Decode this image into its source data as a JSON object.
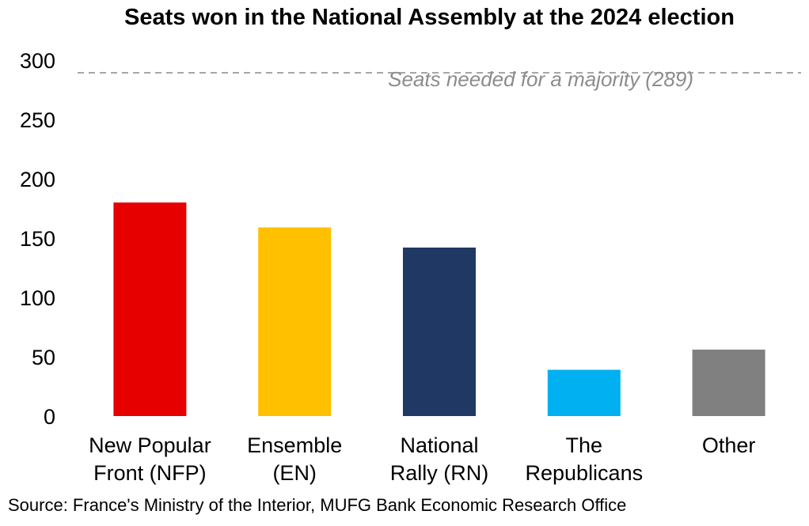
{
  "chart_data": {
    "type": "bar",
    "title": "Seats won in the National Assembly at the 2024 election",
    "categories": [
      [
        "New Popular",
        "Front (NFP)"
      ],
      [
        "Ensemble",
        "(EN)"
      ],
      [
        "National",
        "Rally (RN)"
      ],
      [
        "The",
        "Republicans"
      ],
      [
        "Other"
      ]
    ],
    "values": [
      180,
      159,
      142,
      39,
      56
    ],
    "colors": [
      "#e60000",
      "#ffc000",
      "#1f3864",
      "#00b0f0",
      "#808080"
    ],
    "ylim": [
      0,
      300
    ],
    "yticks": [
      0,
      50,
      100,
      150,
      200,
      250,
      300
    ],
    "grid": false,
    "legend": "none",
    "reference_line": {
      "value": 289,
      "label": "Seats needed for a majority (289)",
      "color": "#a6a6a6",
      "style": "dashed"
    }
  },
  "source": "Source: France's Ministry of the Interior, MUFG Bank Economic Research Office"
}
